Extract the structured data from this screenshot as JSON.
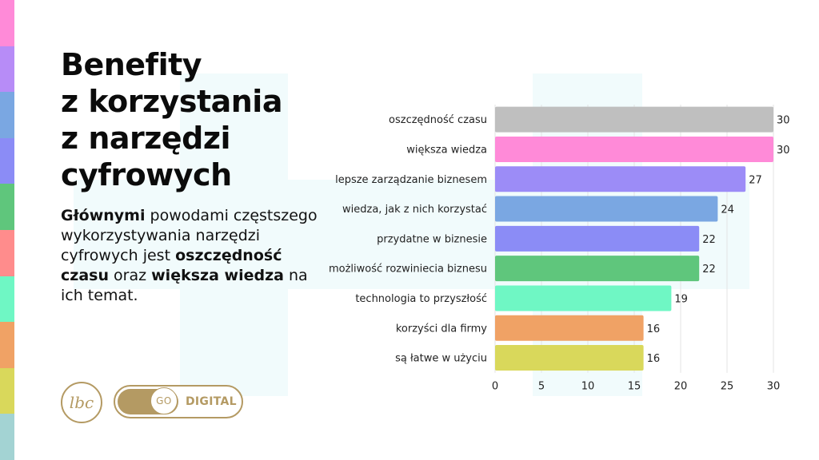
{
  "slide": {
    "title_lines": [
      "Benefity",
      "z korzystania",
      "z narzędzi",
      "cyfrowych"
    ],
    "description": {
      "part1_bold": "Głównymi",
      "part2": " powodami częstszego wykorzystywania narzędzi cyfrowych jest ",
      "part3_bold": "oszczędność czasu",
      "part4": " oraz ",
      "part5_bold": "większa wiedza",
      "part6": " na ich temat."
    },
    "logo_text": "lbc",
    "toggle": {
      "knob_text": "GO",
      "label": "DIGITAL"
    }
  },
  "colors": {
    "accent_gold": "#b49a63",
    "stripe": [
      "#ff8ad8",
      "#b78cf7",
      "#7aa7e2",
      "#8b8cf6",
      "#5fc67c",
      "#ff8c8c",
      "#6ff7c4",
      "#f0a265",
      "#d9d85b",
      "#a3d3d3"
    ]
  },
  "chart_data": {
    "type": "bar",
    "orientation": "horizontal",
    "categories": [
      "oszczędność czasu",
      "większa wiedza",
      "lepsze zarządzanie biznesem",
      "wiedza, jak z nich korzystać",
      "przydatne w biznesie",
      "możliwość rozwiniecia biznesu",
      "technologia to przyszłość",
      "korzyści dla firmy",
      "są łatwe w użyciu"
    ],
    "values": [
      30,
      30,
      27,
      24,
      22,
      22,
      19,
      16,
      16
    ],
    "colors": [
      "#bfbfbf",
      "#ff8ad8",
      "#9c8cf7",
      "#7aa7e2",
      "#8b8cf6",
      "#5fc67c",
      "#6ff7c4",
      "#f0a265",
      "#d9d85b"
    ],
    "xlim": [
      0,
      30
    ],
    "xticks": [
      0,
      5,
      10,
      15,
      20,
      25,
      30
    ],
    "grid": true,
    "title": "",
    "xlabel": "",
    "ylabel": ""
  }
}
